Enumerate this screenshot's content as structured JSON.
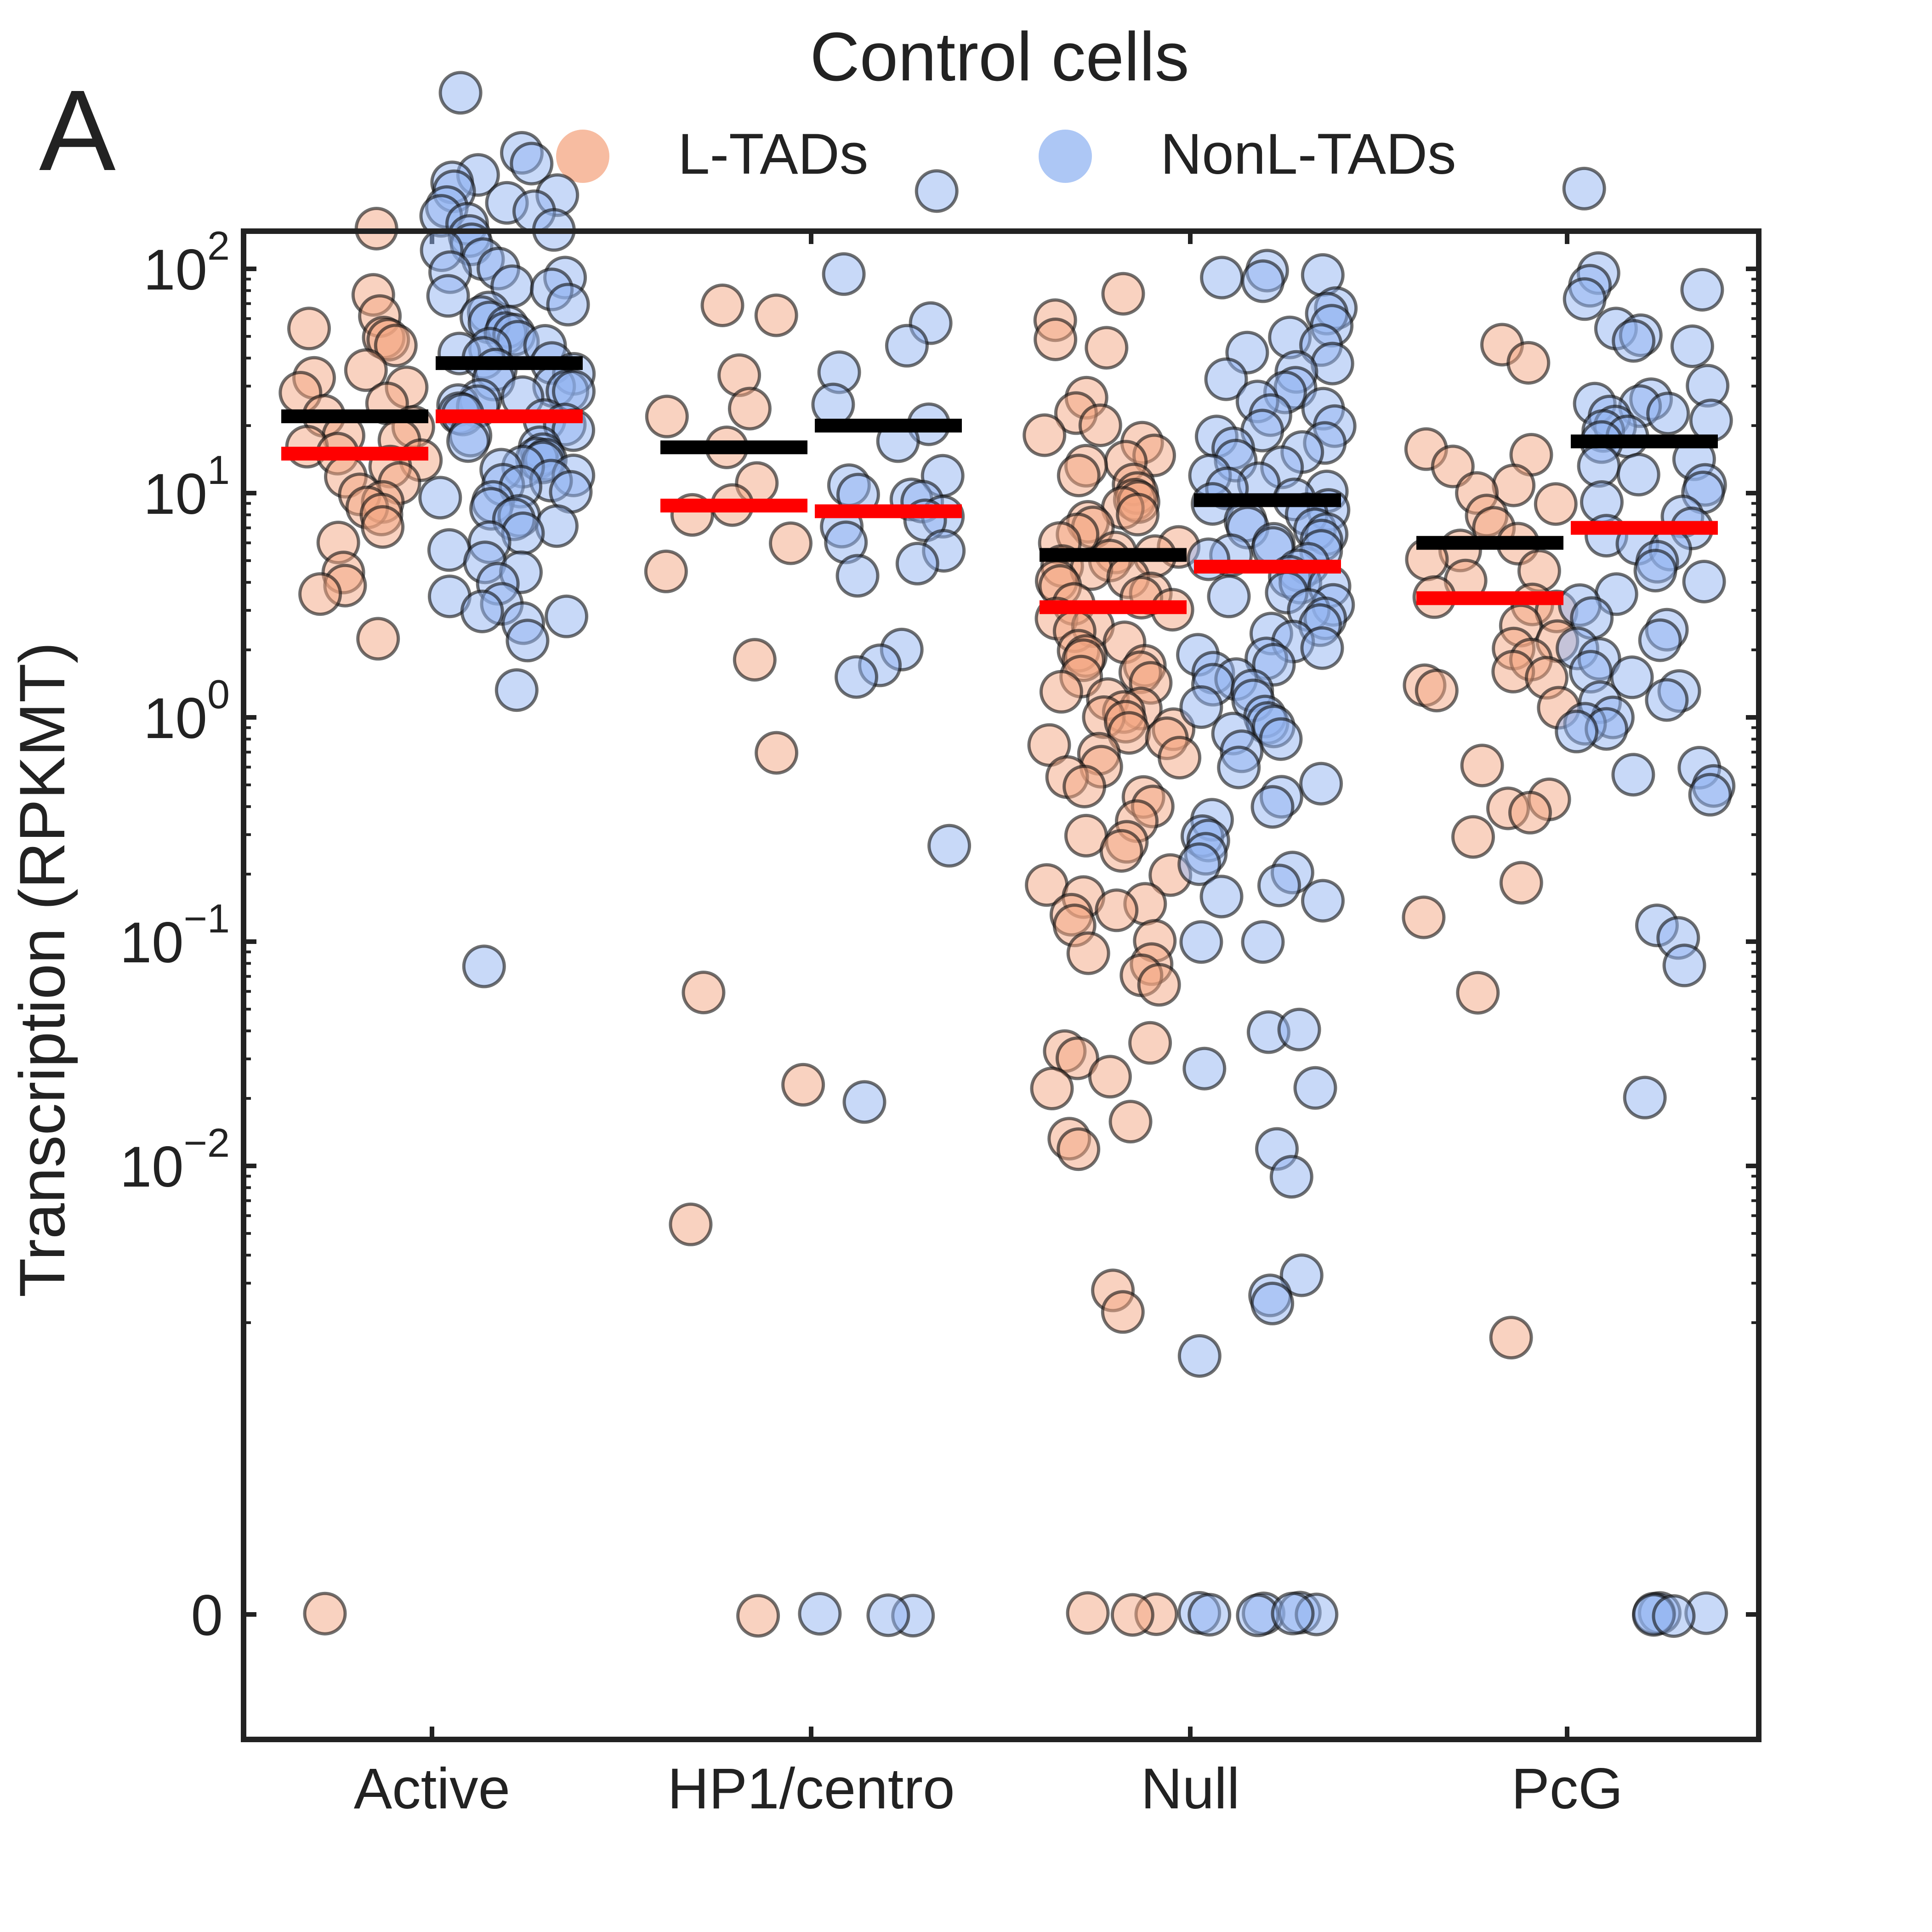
{
  "panel_label": "A",
  "chart_data": {
    "type": "scatter",
    "subtype": "strip (jitter) plot with mean and median bars",
    "title": "Control cells",
    "ylabel": "Transcription (RPKMT)",
    "xlabel": "",
    "y_scale": "symlog",
    "ylim": [
      -0.001,
      1000
    ],
    "y_ticks": [
      {
        "value": 0,
        "base": "0",
        "exp": ""
      },
      {
        "value": 0.01,
        "base": "10",
        "exp": "−2"
      },
      {
        "value": 0.1,
        "base": "10",
        "exp": "−1"
      },
      {
        "value": 1,
        "base": "10",
        "exp": "0"
      },
      {
        "value": 10,
        "base": "10",
        "exp": "1"
      },
      {
        "value": 100,
        "base": "10",
        "exp": "2"
      }
    ],
    "categories": [
      "Active",
      "HP1/centro",
      "Null",
      "PcG"
    ],
    "grid": false,
    "legend_position": "top-center",
    "colors": {
      "L-TADs": "#f4a582",
      "NonL-TADs": "#92b4f2",
      "mean_line": "#000000",
      "median_line": "#ff0000",
      "axis": "#222222"
    },
    "series": [
      {
        "name": "L-TADs",
        "summary": [
          {
            "category": "Active",
            "mean": 22,
            "median": 15
          },
          {
            "category": "HP1/centro",
            "mean": 16,
            "median": 8.8
          },
          {
            "category": "Null",
            "mean": 5.3,
            "median": 3.1
          },
          {
            "category": "PcG",
            "mean": 6,
            "median": 3.4
          }
        ],
        "points": {
          "Active": [
            150,
            78,
            62,
            55,
            50,
            48,
            45,
            35,
            33,
            30,
            28,
            25,
            22,
            20,
            18,
            17,
            16,
            15,
            14,
            13,
            12,
            11,
            10,
            9,
            8.5,
            8,
            7,
            6,
            4.5,
            3.8,
            3.5,
            2.2,
            0
          ],
          "HP1/centro": [
            68,
            62,
            34,
            24,
            22,
            16,
            11,
            9,
            8,
            6,
            4.5,
            1.8,
            0.7,
            0.06,
            0.023,
            0.0055,
            0
          ],
          "Null": [
            78,
            60,
            48,
            45,
            27,
            23,
            20,
            18,
            17,
            15,
            14,
            13,
            12,
            11,
            10,
            9.5,
            9,
            8.5,
            8,
            7.5,
            7,
            6.5,
            6,
            5.8,
            5.5,
            5.2,
            5,
            4.8,
            4.5,
            4.2,
            4,
            3.8,
            3.6,
            3.4,
            3.2,
            3,
            2.8,
            2.6,
            2.4,
            2.2,
            2,
            1.9,
            1.8,
            1.7,
            1.6,
            1.5,
            1.4,
            1.3,
            1.2,
            1.1,
            1.05,
            1,
            0.95,
            0.9,
            0.85,
            0.8,
            0.75,
            0.7,
            0.65,
            0.6,
            0.55,
            0.5,
            0.45,
            0.4,
            0.35,
            0.3,
            0.28,
            0.25,
            0.2,
            0.18,
            0.16,
            0.15,
            0.14,
            0.13,
            0.12,
            0.1,
            0.09,
            0.08,
            0.07,
            0.065,
            0.035,
            0.032,
            0.03,
            0.025,
            0.022,
            0.016,
            0.013,
            0.012,
            0.0028,
            0.0022,
            0,
            0,
            0
          ],
          "PcG": [
            46,
            38,
            16,
            15,
            13,
            11,
            10,
            9,
            8,
            7,
            6,
            5.5,
            5,
            4.5,
            4,
            3.5,
            3.2,
            3,
            2.6,
            2.2,
            2,
            1.8,
            1.6,
            1.5,
            1.4,
            1.3,
            1.1,
            0.6,
            0.43,
            0.4,
            0.38,
            0.29,
            0.18,
            0.13,
            0.06,
            0.0017
          ]
        }
      },
      {
        "name": "NonL-TADs",
        "summary": [
          {
            "category": "Active",
            "mean": 38,
            "median": 22
          },
          {
            "category": "HP1/centro",
            "mean": 20,
            "median": 8.3
          },
          {
            "category": "Null",
            "mean": 9.3,
            "median": 4.7
          },
          {
            "category": "PcG",
            "mean": 17,
            "median": 7
          }
        ],
        "points": {
          "Active": [
            600,
            330,
            290,
            260,
            240,
            220,
            210,
            200,
            190,
            180,
            170,
            160,
            150,
            140,
            130,
            120,
            110,
            100,
            95,
            90,
            85,
            80,
            75,
            70,
            65,
            60,
            58,
            55,
            52,
            50,
            48,
            46,
            44,
            42,
            40,
            38,
            36,
            34,
            32,
            30,
            29,
            28,
            27,
            26,
            25,
            24,
            23,
            22,
            21,
            20,
            19,
            18,
            17,
            16,
            15,
            14.5,
            14,
            13.5,
            13,
            12.5,
            12,
            11.5,
            11,
            10.5,
            10,
            9.5,
            9,
            8.5,
            8,
            7.5,
            7,
            6.5,
            6,
            5.5,
            5,
            4.5,
            4,
            3.5,
            3.2,
            3,
            2.8,
            2.6,
            2.2,
            1.3,
            0.077
          ],
          "HP1/centro": [
            220,
            95,
            58,
            46,
            35,
            25,
            20,
            17,
            12,
            11,
            10,
            9.5,
            9,
            8,
            7.5,
            7,
            6,
            5.5,
            4.8,
            4.3,
            2,
            1.7,
            1.5,
            0.27,
            0.019,
            0,
            0,
            0
          ],
          "Null": [
            100,
            95,
            92,
            88,
            68,
            62,
            55,
            50,
            46,
            42,
            38,
            35,
            32,
            30,
            28,
            26,
            24,
            22,
            20,
            19,
            18,
            17,
            16,
            15,
            14,
            13,
            12,
            11,
            10.5,
            10,
            9.5,
            9,
            8.5,
            8,
            7.5,
            7,
            6.8,
            6.5,
            6.2,
            6,
            5.8,
            5.5,
            5.2,
            5,
            4.8,
            4.5,
            4.2,
            4,
            3.8,
            3.6,
            3.4,
            3.2,
            3,
            2.8,
            2.6,
            2.4,
            2.2,
            2,
            1.9,
            1.8,
            1.7,
            1.6,
            1.5,
            1.4,
            1.3,
            1.2,
            1.1,
            1,
            0.95,
            0.9,
            0.85,
            0.8,
            0.7,
            0.6,
            0.5,
            0.45,
            0.4,
            0.35,
            0.3,
            0.28,
            0.25,
            0.22,
            0.2,
            0.18,
            0.16,
            0.15,
            0.1,
            0.1,
            0.04,
            0.04,
            0.027,
            0.022,
            0.012,
            0.009,
            0.0033,
            0.0026,
            0.0024,
            0.0014,
            0,
            0,
            0,
            0,
            0,
            0,
            0
          ],
          "PcG": [
            230,
            95,
            85,
            80,
            72,
            55,
            50,
            48,
            45,
            30,
            26,
            25,
            24,
            23,
            22,
            21,
            20,
            19,
            18,
            17,
            14,
            13,
            12,
            11,
            10,
            9,
            8,
            7,
            6.5,
            6,
            5.5,
            5,
            4.5,
            4,
            3.5,
            3.2,
            2.8,
            2.5,
            2.2,
            2,
            1.8,
            1.6,
            1.5,
            1.3,
            1.2,
            1.15,
            1,
            0.95,
            0.9,
            0.85,
            0.6,
            0.55,
            0.5,
            0.46,
            0.12,
            0.105,
            0.077,
            0.02,
            0,
            0,
            0,
            0,
            0
          ]
        }
      }
    ]
  }
}
